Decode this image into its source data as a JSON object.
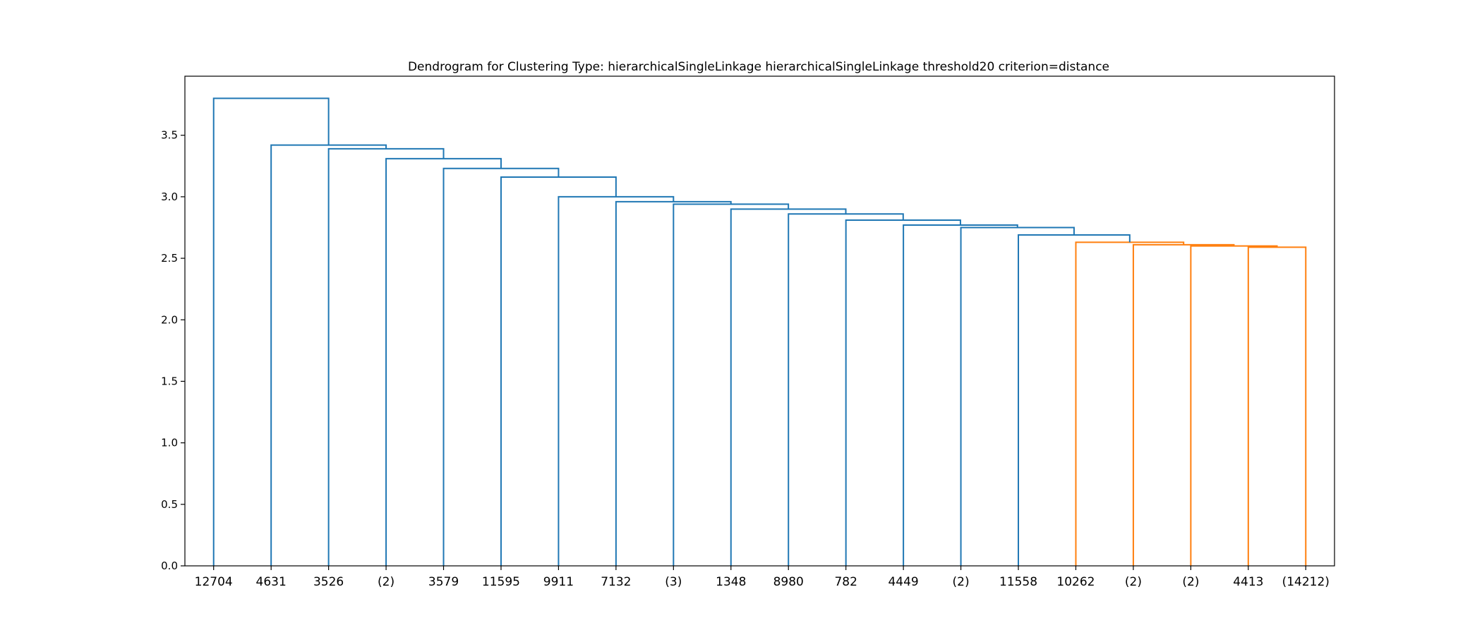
{
  "chart_data": {
    "type": "dendrogram",
    "title": "Dendrogram for Clustering Type: hierarchicalSingleLinkage hierarchicalSingleLinkage threshold20 criterion=distance",
    "xlabel": "",
    "ylabel": "",
    "ylim": [
      0,
      3.98
    ],
    "yticks": [
      "0.0",
      "0.5",
      "1.0",
      "1.5",
      "2.0",
      "2.5",
      "3.0",
      "3.5"
    ],
    "grid": false,
    "leaves": [
      "12704",
      "4631",
      "3526",
      "(2)",
      "3579",
      "11595",
      "9911",
      "7132",
      "(3)",
      "1348",
      "8980",
      "782",
      "4449",
      "(2)",
      "11558",
      "10262",
      "(2)",
      "(2)",
      "4413",
      "(14212)"
    ],
    "merges": [
      {
        "left": 18,
        "right": 19,
        "height": 2.59,
        "color": "#ff7f0e"
      },
      {
        "left": 17,
        "right": 20,
        "height": 2.6,
        "color": "#ff7f0e"
      },
      {
        "left": 16,
        "right": 21,
        "height": 2.61,
        "color": "#ff7f0e"
      },
      {
        "left": 15,
        "right": 22,
        "height": 2.63,
        "color": "#ff7f0e"
      },
      {
        "left": 14,
        "right": 23,
        "height": 2.69,
        "color": "#1f77b4"
      },
      {
        "left": 13,
        "right": 24,
        "height": 2.75,
        "color": "#1f77b4"
      },
      {
        "left": 12,
        "right": 25,
        "height": 2.77,
        "color": "#1f77b4"
      },
      {
        "left": 11,
        "right": 26,
        "height": 2.81,
        "color": "#1f77b4"
      },
      {
        "left": 10,
        "right": 27,
        "height": 2.86,
        "color": "#1f77b4"
      },
      {
        "left": 9,
        "right": 28,
        "height": 2.9,
        "color": "#1f77b4"
      },
      {
        "left": 8,
        "right": 29,
        "height": 2.94,
        "color": "#1f77b4"
      },
      {
        "left": 7,
        "right": 30,
        "height": 2.96,
        "color": "#1f77b4"
      },
      {
        "left": 6,
        "right": 31,
        "height": 3.0,
        "color": "#1f77b4"
      },
      {
        "left": 5,
        "right": 32,
        "height": 3.16,
        "color": "#1f77b4"
      },
      {
        "left": 4,
        "right": 33,
        "height": 3.23,
        "color": "#1f77b4"
      },
      {
        "left": 3,
        "right": 34,
        "height": 3.31,
        "color": "#1f77b4"
      },
      {
        "left": 2,
        "right": 35,
        "height": 3.39,
        "color": "#1f77b4"
      },
      {
        "left": 1,
        "right": 36,
        "height": 3.42,
        "color": "#1f77b4"
      },
      {
        "left": 0,
        "right": 37,
        "height": 3.8,
        "color": "#1f77b4"
      }
    ]
  }
}
